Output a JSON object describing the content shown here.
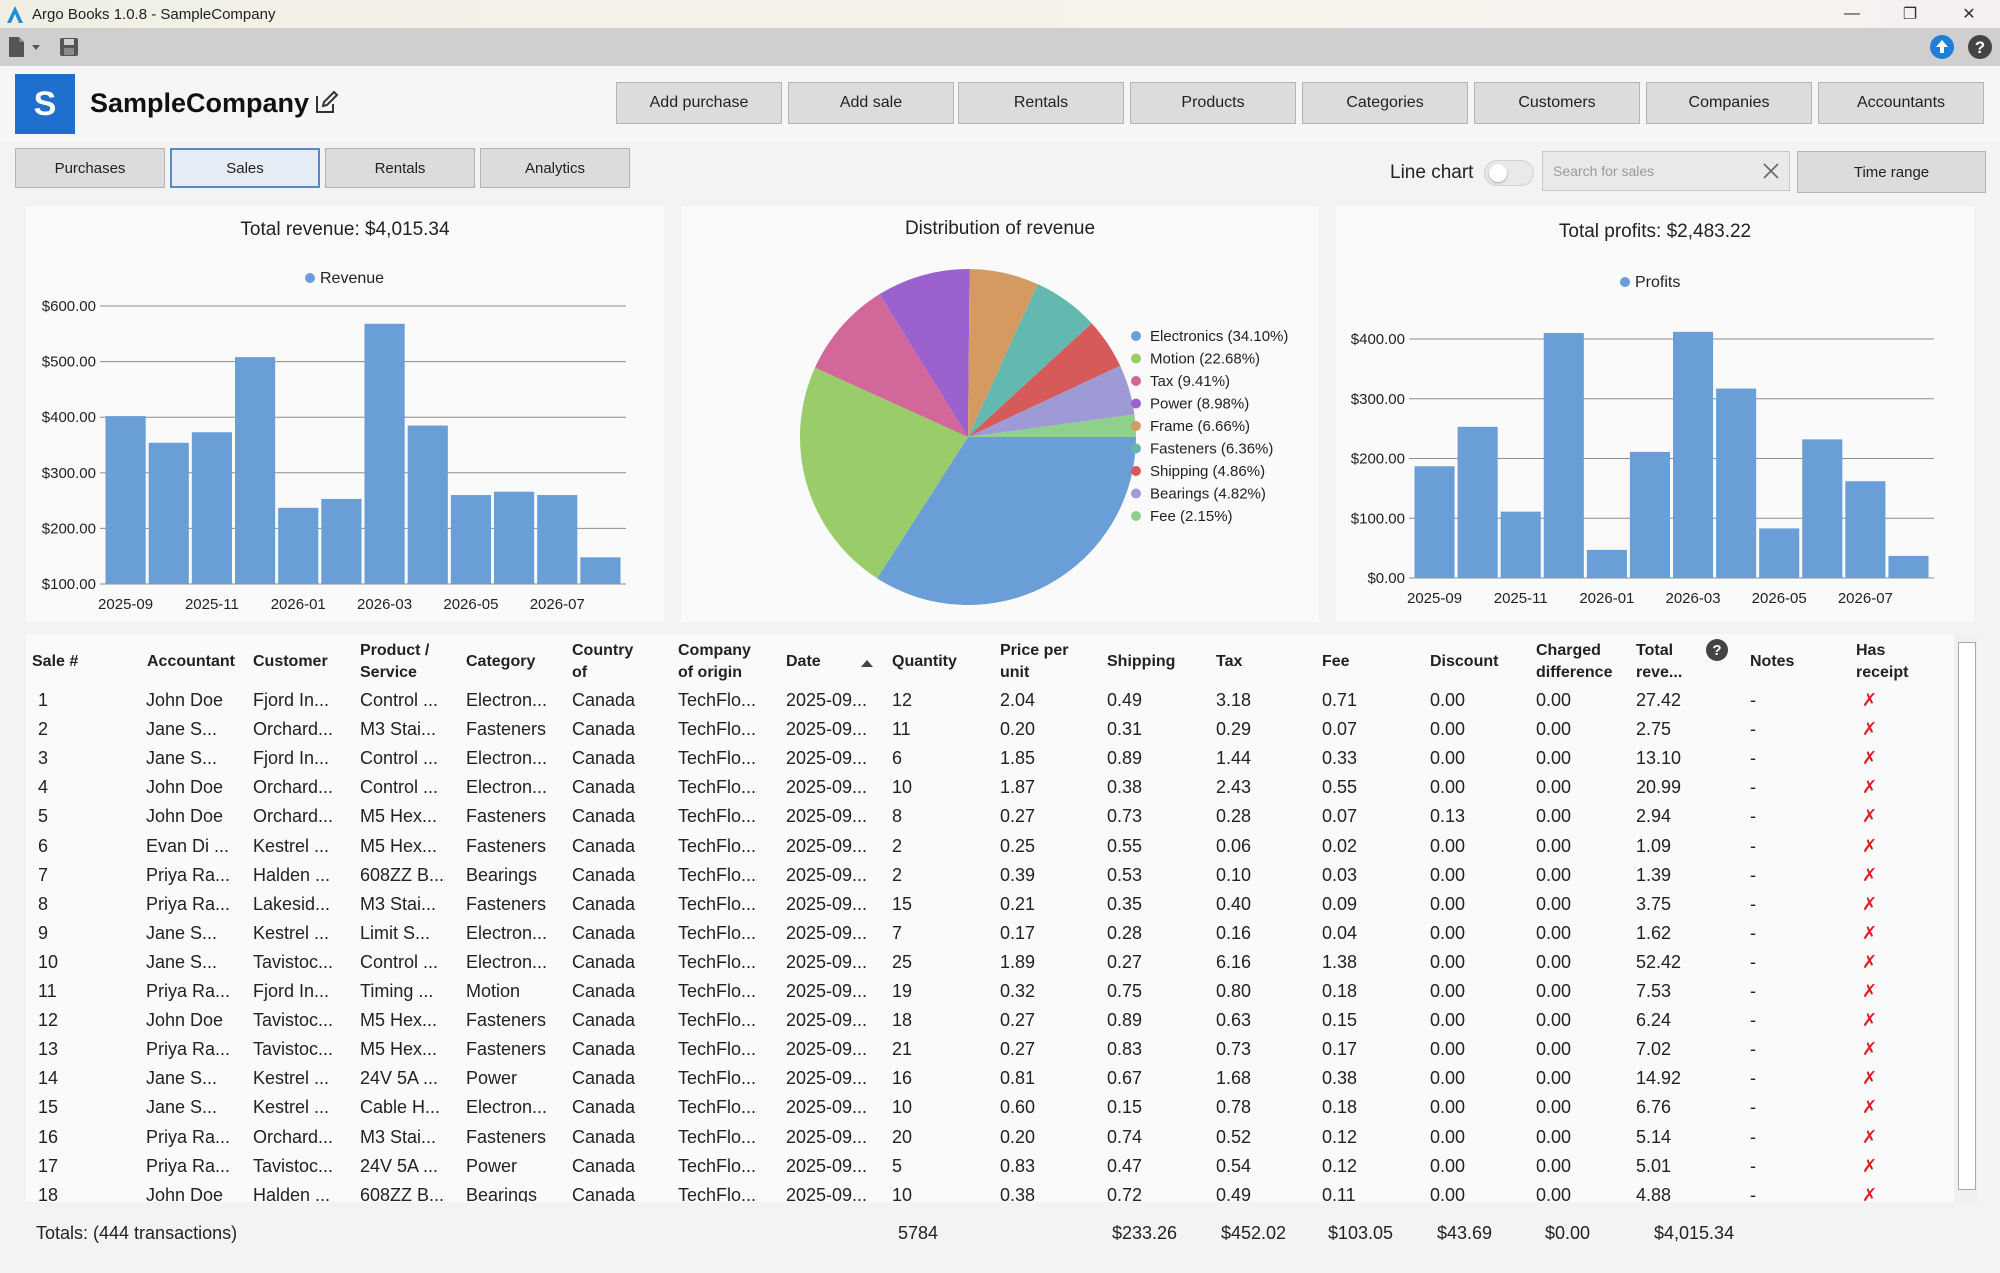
{
  "window": {
    "title": "Argo Books 1.0.8 - SampleCompany",
    "minimize": "—",
    "restore": "❐",
    "close": "✕"
  },
  "header": {
    "logo_letter": "S",
    "company": "SampleCompany",
    "buttons": [
      "Add purchase",
      "Add sale",
      "Rentals",
      "Products",
      "Categories",
      "Customers",
      "Companies",
      "Accountants"
    ]
  },
  "tabs": [
    "Purchases",
    "Sales",
    "Rentals",
    "Analytics"
  ],
  "active_tab": "Sales",
  "controls": {
    "line_chart_label": "Line chart",
    "line_chart_on": false,
    "search_placeholder": "Search for sales",
    "time_range": "Time range"
  },
  "colors": {
    "bar": "#6a9ed6",
    "accent": "#1f6fcf",
    "cross": "#e02020"
  },
  "chart_data": [
    {
      "type": "bar",
      "title": "Total revenue: $4,015.34",
      "legend": [
        "Revenue"
      ],
      "legend_placement": "top",
      "y_ticks": [
        "$600.00",
        "$500.00",
        "$400.00",
        "$300.00",
        "$200.00",
        "$100.00"
      ],
      "ylim": [
        100,
        600
      ],
      "x_ticks": [
        "2025-09",
        "2025-11",
        "2026-01",
        "2026-03",
        "2026-05",
        "2026-07"
      ],
      "values": [
        402,
        354,
        373,
        508,
        237,
        253,
        568,
        385,
        260,
        266,
        260,
        148
      ],
      "grid": true
    },
    {
      "type": "pie",
      "title": "Distribution of revenue",
      "legend_placement": "right",
      "slices": [
        {
          "label": "Electronics (34.10%)",
          "value": 34.1,
          "color": "#6a9ed6"
        },
        {
          "label": "Motion (22.68%)",
          "value": 22.68,
          "color": "#9acc6a"
        },
        {
          "label": "Tax (9.41%)",
          "value": 9.41,
          "color": "#d2679a"
        },
        {
          "label": "Power (8.98%)",
          "value": 8.98,
          "color": "#9b62cf"
        },
        {
          "label": "Frame (6.66%)",
          "value": 6.66,
          "color": "#d59a62"
        },
        {
          "label": "Fasteners (6.36%)",
          "value": 6.36,
          "color": "#63b8b0"
        },
        {
          "label": "Shipping (4.86%)",
          "value": 4.86,
          "color": "#d75a5a"
        },
        {
          "label": "Bearings (4.82%)",
          "value": 4.82,
          "color": "#9d9ad6"
        },
        {
          "label": "Fee (2.15%)",
          "value": 2.15,
          "color": "#8fd08a"
        }
      ]
    },
    {
      "type": "bar",
      "title": "Total profits: $2,483.22",
      "legend": [
        "Profits"
      ],
      "legend_placement": "top",
      "y_ticks": [
        "$400.00",
        "$300.00",
        "$200.00",
        "$100.00",
        "$0.00"
      ],
      "ylim": [
        0,
        400
      ],
      "x_ticks": [
        "2025-09",
        "2025-11",
        "2026-01",
        "2026-03",
        "2026-05",
        "2026-07"
      ],
      "values": [
        187,
        253,
        111,
        410,
        47,
        211,
        412,
        317,
        83,
        232,
        162,
        37
      ],
      "grid": true
    }
  ],
  "table": {
    "columns": [
      [
        "Sale #"
      ],
      [
        "Accountant"
      ],
      [
        "Customer"
      ],
      [
        "Product /",
        "Service"
      ],
      [
        "Category"
      ],
      [
        "Country",
        "of"
      ],
      [
        "Company",
        "of origin"
      ],
      [
        "Date"
      ],
      [
        "Quantity"
      ],
      [
        "Price per",
        "unit"
      ],
      [
        "Shipping"
      ],
      [
        "Tax"
      ],
      [
        "Fee"
      ],
      [
        "Discount"
      ],
      [
        "Charged",
        "difference"
      ],
      [
        "Total",
        "reve..."
      ],
      [
        "Notes"
      ],
      [
        "Has",
        "receipt"
      ]
    ],
    "rows": [
      [
        "1",
        "John Doe",
        "Fjord In...",
        "Control ...",
        "Electron...",
        "Canada",
        "TechFlo...",
        "2025-09...",
        "12",
        "2.04",
        "0.49",
        "3.18",
        "0.71",
        "0.00",
        "0.00",
        "27.42",
        "-",
        "✗"
      ],
      [
        "2",
        "Jane S...",
        "Orchard...",
        "M3 Stai...",
        "Fasteners",
        "Canada",
        "TechFlo...",
        "2025-09...",
        "11",
        "0.20",
        "0.31",
        "0.29",
        "0.07",
        "0.00",
        "0.00",
        "2.75",
        "-",
        "✗"
      ],
      [
        "3",
        "Jane S...",
        "Fjord In...",
        "Control ...",
        "Electron...",
        "Canada",
        "TechFlo...",
        "2025-09...",
        "6",
        "1.85",
        "0.89",
        "1.44",
        "0.33",
        "0.00",
        "0.00",
        "13.10",
        "-",
        "✗"
      ],
      [
        "4",
        "John Doe",
        "Orchard...",
        "Control ...",
        "Electron...",
        "Canada",
        "TechFlo...",
        "2025-09...",
        "10",
        "1.87",
        "0.38",
        "2.43",
        "0.55",
        "0.00",
        "0.00",
        "20.99",
        "-",
        "✗"
      ],
      [
        "5",
        "John Doe",
        "Orchard...",
        "M5 Hex...",
        "Fasteners",
        "Canada",
        "TechFlo...",
        "2025-09...",
        "8",
        "0.27",
        "0.73",
        "0.28",
        "0.07",
        "0.13",
        "0.00",
        "2.94",
        "-",
        "✗"
      ],
      [
        "6",
        "Evan Di ...",
        "Kestrel ...",
        "M5 Hex...",
        "Fasteners",
        "Canada",
        "TechFlo...",
        "2025-09...",
        "2",
        "0.25",
        "0.55",
        "0.06",
        "0.02",
        "0.00",
        "0.00",
        "1.09",
        "-",
        "✗"
      ],
      [
        "7",
        "Priya Ra...",
        "Halden ...",
        "608ZZ B...",
        "Bearings",
        "Canada",
        "TechFlo...",
        "2025-09...",
        "2",
        "0.39",
        "0.53",
        "0.10",
        "0.03",
        "0.00",
        "0.00",
        "1.39",
        "-",
        "✗"
      ],
      [
        "8",
        "Priya Ra...",
        "Lakesid...",
        "M3 Stai...",
        "Fasteners",
        "Canada",
        "TechFlo...",
        "2025-09...",
        "15",
        "0.21",
        "0.35",
        "0.40",
        "0.09",
        "0.00",
        "0.00",
        "3.75",
        "-",
        "✗"
      ],
      [
        "9",
        "Jane S...",
        "Kestrel ...",
        "Limit S...",
        "Electron...",
        "Canada",
        "TechFlo...",
        "2025-09...",
        "7",
        "0.17",
        "0.28",
        "0.16",
        "0.04",
        "0.00",
        "0.00",
        "1.62",
        "-",
        "✗"
      ],
      [
        "10",
        "Jane S...",
        "Tavistoc...",
        "Control ...",
        "Electron...",
        "Canada",
        "TechFlo...",
        "2025-09...",
        "25",
        "1.89",
        "0.27",
        "6.16",
        "1.38",
        "0.00",
        "0.00",
        "52.42",
        "-",
        "✗"
      ],
      [
        "11",
        "Priya Ra...",
        "Fjord In...",
        "Timing ...",
        "Motion",
        "Canada",
        "TechFlo...",
        "2025-09...",
        "19",
        "0.32",
        "0.75",
        "0.80",
        "0.18",
        "0.00",
        "0.00",
        "7.53",
        "-",
        "✗"
      ],
      [
        "12",
        "John Doe",
        "Tavistoc...",
        "M5 Hex...",
        "Fasteners",
        "Canada",
        "TechFlo...",
        "2025-09...",
        "18",
        "0.27",
        "0.89",
        "0.63",
        "0.15",
        "0.00",
        "0.00",
        "6.24",
        "-",
        "✗"
      ],
      [
        "13",
        "Priya Ra...",
        "Tavistoc...",
        "M5 Hex...",
        "Fasteners",
        "Canada",
        "TechFlo...",
        "2025-09...",
        "21",
        "0.27",
        "0.83",
        "0.73",
        "0.17",
        "0.00",
        "0.00",
        "7.02",
        "-",
        "✗"
      ],
      [
        "14",
        "Jane S...",
        "Kestrel ...",
        "24V 5A ...",
        "Power",
        "Canada",
        "TechFlo...",
        "2025-09...",
        "16",
        "0.81",
        "0.67",
        "1.68",
        "0.38",
        "0.00",
        "0.00",
        "14.92",
        "-",
        "✗"
      ],
      [
        "15",
        "Jane S...",
        "Kestrel ...",
        "Cable H...",
        "Electron...",
        "Canada",
        "TechFlo...",
        "2025-09...",
        "10",
        "0.60",
        "0.15",
        "0.78",
        "0.18",
        "0.00",
        "0.00",
        "6.76",
        "-",
        "✗"
      ],
      [
        "16",
        "Priya Ra...",
        "Orchard...",
        "M3 Stai...",
        "Fasteners",
        "Canada",
        "TechFlo...",
        "2025-09...",
        "20",
        "0.20",
        "0.74",
        "0.52",
        "0.12",
        "0.00",
        "0.00",
        "5.14",
        "-",
        "✗"
      ],
      [
        "17",
        "Priya Ra...",
        "Tavistoc...",
        "24V 5A ...",
        "Power",
        "Canada",
        "TechFlo...",
        "2025-09...",
        "5",
        "0.83",
        "0.47",
        "0.54",
        "0.12",
        "0.00",
        "0.00",
        "5.01",
        "-",
        "✗"
      ],
      [
        "18",
        "John Doe",
        "Halden ...",
        "608ZZ B...",
        "Bearings",
        "Canada",
        "TechFlo...",
        "2025-09...",
        "10",
        "0.38",
        "0.72",
        "0.49",
        "0.11",
        "0.00",
        "0.00",
        "4.88",
        "-",
        "✗"
      ]
    ]
  },
  "totals": {
    "label": "Totals: (444 transactions)",
    "quantity": "5784",
    "shipping": "$233.26",
    "tax": "$452.02",
    "fee": "$103.05",
    "discount": "$43.69",
    "charged_difference": "$0.00",
    "total_revenue": "$4,015.34"
  }
}
